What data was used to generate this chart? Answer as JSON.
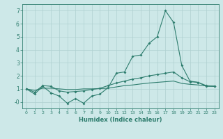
{
  "xlabel": "Humidex (Indice chaleur)",
  "x_values": [
    0,
    1,
    2,
    3,
    4,
    5,
    6,
    7,
    8,
    9,
    10,
    11,
    12,
    13,
    14,
    15,
    16,
    17,
    18,
    19,
    20,
    21,
    22,
    23
  ],
  "line1": [
    1.0,
    0.6,
    1.2,
    0.7,
    0.45,
    -0.1,
    0.25,
    -0.1,
    0.45,
    0.6,
    1.1,
    2.2,
    2.3,
    3.5,
    3.6,
    4.5,
    5.0,
    7.0,
    6.1,
    2.8,
    1.6,
    1.5,
    1.2,
    1.2
  ],
  "line2": [
    1.0,
    0.75,
    1.25,
    1.2,
    0.85,
    0.75,
    0.8,
    0.85,
    0.95,
    1.05,
    1.25,
    1.45,
    1.6,
    1.75,
    1.85,
    2.0,
    2.1,
    2.2,
    2.3,
    1.85,
    1.55,
    1.5,
    1.25,
    1.2
  ],
  "line3": [
    1.0,
    0.88,
    1.05,
    1.05,
    1.0,
    0.95,
    0.95,
    1.0,
    1.0,
    1.02,
    1.05,
    1.15,
    1.25,
    1.3,
    1.38,
    1.45,
    1.5,
    1.55,
    1.6,
    1.42,
    1.35,
    1.3,
    1.22,
    1.2
  ],
  "line_color": "#2e7d6e",
  "bg_color": "#cde8e8",
  "grid_color": "#afd0d0",
  "ylim": [
    -0.5,
    7.5
  ],
  "xlim": [
    -0.5,
    23.5
  ]
}
